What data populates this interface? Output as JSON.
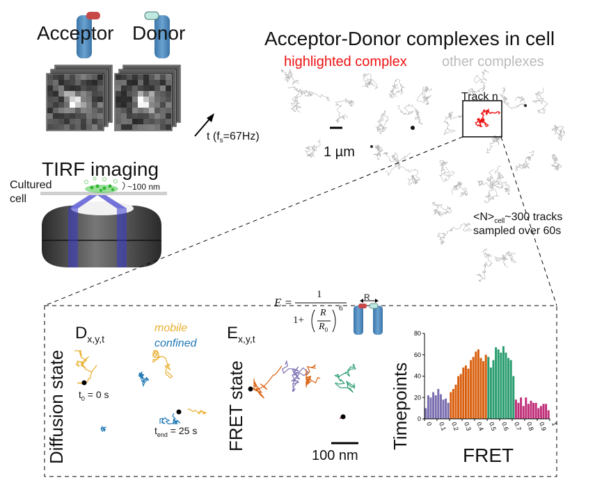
{
  "labels": {
    "acceptor": "Acceptor",
    "donor": "Donor",
    "time_arrow": "t (f",
    "time_sub": "s",
    "time_rest": "=67Hz)",
    "tirf": "TIRF imaging",
    "cultured": "Cultured",
    "cell": "cell",
    "depth": "~100 nm",
    "complexes_title": "Acceptor-Donor complexes in cell",
    "highlighted": "highlighted complex",
    "other": "other complexes",
    "track_n": "Track n",
    "scalebar_um": "1 µm",
    "ntracks_pre": "<N>",
    "ntracks_sub": "cell",
    "ntracks_post": "~300 tracks",
    "sampled": "sampled over 60s",
    "diffusion_state": "Diffusion state",
    "d_label": "D",
    "d_sub": "x,y,t",
    "mobile": "mobile",
    "confined": "confined",
    "t0": "t",
    "t0_sub": "0",
    "t0_rest": " = 0 s",
    "tend": "t",
    "tend_sub": "end",
    "tend_rest": " = 25 s",
    "fret_state": "FRET state",
    "e_label": "E",
    "e_sub": "x,y,t",
    "scalebar_nm": "100 nm",
    "formula_e": "E =",
    "formula_one": "1",
    "formula_denom": "1+",
    "formula_r": "R",
    "formula_r0": "R",
    "formula_r0_sub": "0",
    "formula_exp": "6",
    "r_label": "R"
  },
  "colors": {
    "mobile": "#e8b030",
    "confined": "#1f78b4",
    "fret_purple": "#7b6fb0",
    "fret_orange": "#d95f0e",
    "fret_green": "#2a9d6f",
    "fret_pink": "#c0307a",
    "highlight": "#ee1111",
    "acceptor_cap": "#c84848",
    "donor_cap": "#bfe8e0",
    "cylinder": "#4a86b8"
  },
  "chart_data": {
    "type": "bar",
    "title": "",
    "xlabel": "FRET",
    "ylabel": "Timepoints",
    "xlim": [
      0,
      1
    ],
    "ylim": [
      0,
      80
    ],
    "xticks": [
      "0",
      "0.1",
      "0.2",
      "0.3",
      "0.4",
      "0.5",
      "0.6",
      "0.7",
      "0.8",
      "0.9",
      "1"
    ],
    "yticks": [
      "0",
      "20",
      "40",
      "60",
      "80"
    ],
    "bin_width": 0.02,
    "bin_starts": [
      0.0,
      0.02,
      0.04,
      0.06,
      0.08,
      0.1,
      0.12,
      0.14,
      0.16,
      0.18,
      0.2,
      0.22,
      0.24,
      0.26,
      0.28,
      0.3,
      0.32,
      0.34,
      0.36,
      0.38,
      0.4,
      0.42,
      0.44,
      0.46,
      0.48,
      0.5,
      0.52,
      0.54,
      0.56,
      0.58,
      0.6,
      0.62,
      0.64,
      0.66,
      0.68,
      0.7,
      0.72,
      0.74,
      0.76,
      0.78,
      0.8,
      0.82,
      0.84,
      0.86,
      0.88,
      0.9,
      0.92,
      0.94,
      0.96,
      0.98
    ],
    "values": [
      10,
      22,
      20,
      25,
      22,
      28,
      23,
      18,
      19,
      15,
      25,
      28,
      32,
      40,
      42,
      48,
      50,
      47,
      55,
      58,
      63,
      65,
      57,
      54,
      60,
      58,
      48,
      55,
      67,
      65,
      62,
      68,
      62,
      57,
      55,
      40,
      18,
      15,
      20,
      12,
      20,
      14,
      17,
      15,
      15,
      10,
      12,
      14,
      14,
      8
    ],
    "groups": [
      "purple",
      "purple",
      "purple",
      "purple",
      "purple",
      "purple",
      "purple",
      "purple",
      "purple",
      "purple",
      "orange",
      "orange",
      "orange",
      "orange",
      "orange",
      "orange",
      "orange",
      "orange",
      "orange",
      "orange",
      "orange",
      "orange",
      "orange",
      "orange",
      "orange",
      "green",
      "green",
      "green",
      "green",
      "green",
      "green",
      "green",
      "green",
      "green",
      "green",
      "green",
      "pink",
      "pink",
      "pink",
      "pink",
      "pink",
      "pink",
      "pink",
      "pink",
      "pink",
      "pink",
      "pink",
      "pink",
      "pink",
      "pink"
    ]
  }
}
